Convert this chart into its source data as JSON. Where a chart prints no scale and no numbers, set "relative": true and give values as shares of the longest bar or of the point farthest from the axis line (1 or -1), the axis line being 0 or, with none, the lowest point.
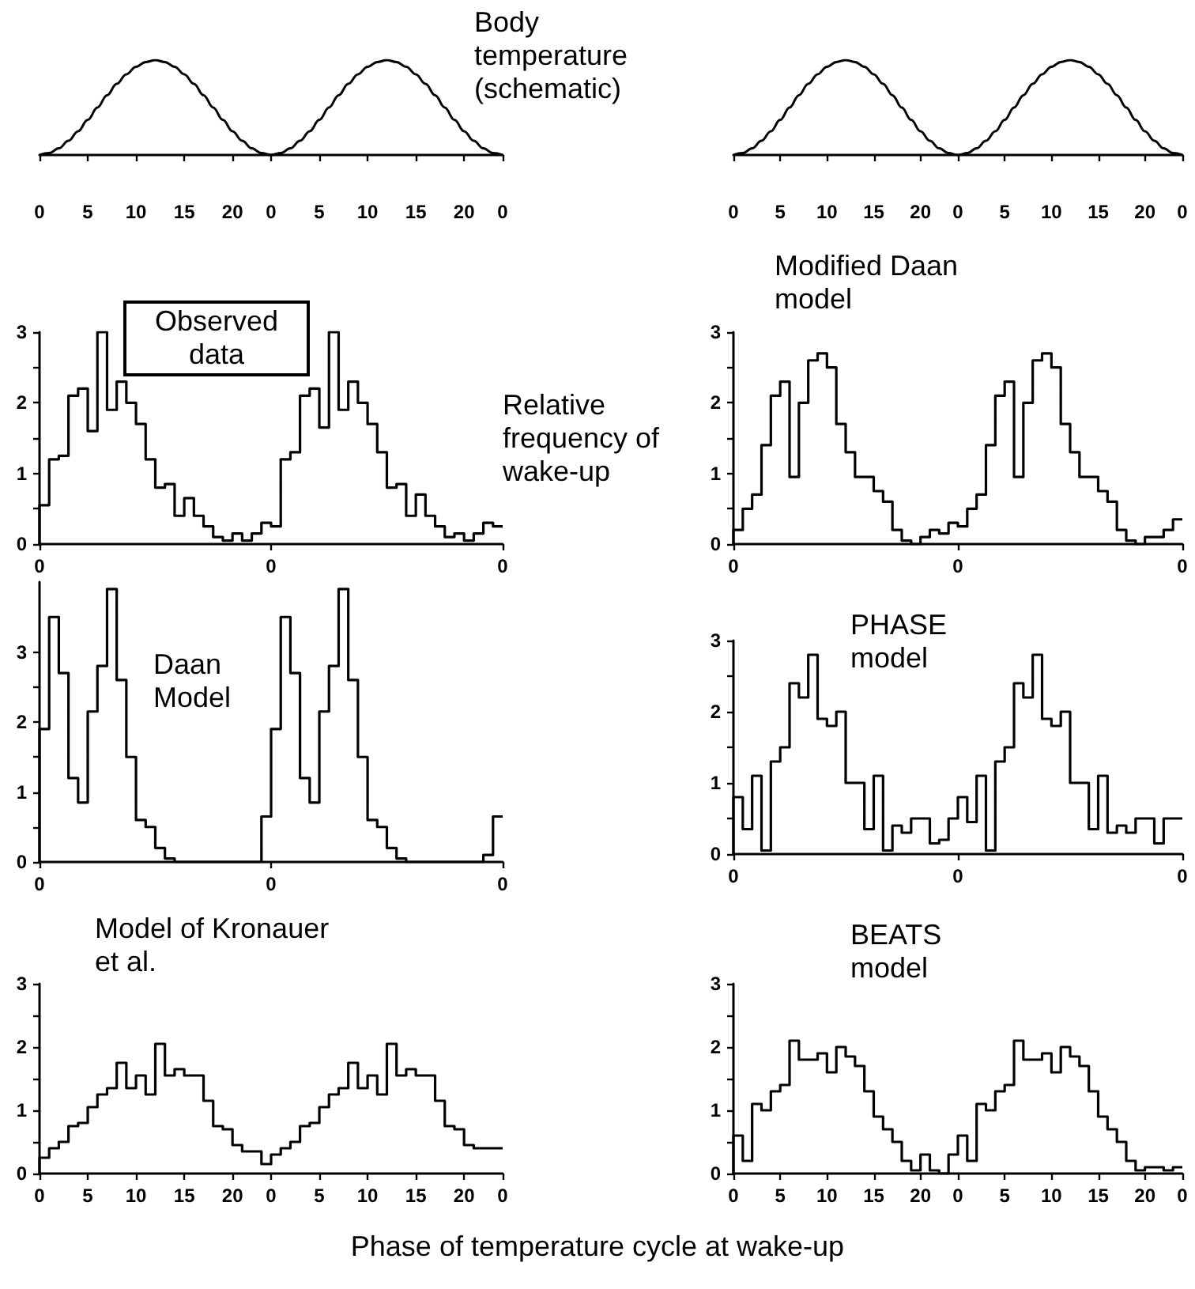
{
  "chart_data": [
    {
      "type": "line",
      "title": "Body temperature (schematic)",
      "relative": true,
      "color": "#000000",
      "categories": [
        "0",
        null,
        null,
        null,
        null,
        "5",
        null,
        null,
        null,
        null,
        "10",
        null,
        null,
        null,
        null,
        "15",
        null,
        null,
        null,
        null,
        "20",
        null,
        null,
        null,
        "0",
        null,
        null,
        null,
        null,
        "5",
        null,
        null,
        null,
        null,
        "10",
        null,
        null,
        null,
        null,
        "15",
        null,
        null,
        null,
        null,
        "20",
        null,
        null,
        null,
        "0"
      ],
      "values": [
        0,
        0.02,
        0.07,
        0.15,
        0.25,
        0.37,
        0.5,
        0.63,
        0.75,
        0.85,
        0.93,
        0.98,
        1,
        0.98,
        0.93,
        0.85,
        0.75,
        0.63,
        0.5,
        0.37,
        0.25,
        0.15,
        0.07,
        0.02,
        0,
        0.02,
        0.07,
        0.15,
        0.25,
        0.37,
        0.5,
        0.63,
        0.75,
        0.85,
        0.93,
        0.98,
        1,
        0.98,
        0.93,
        0.85,
        0.75,
        0.63,
        0.5,
        0.37,
        0.25,
        0.15,
        0.07,
        0.02,
        0
      ]
    },
    {
      "type": "line",
      "relative": true,
      "color": "#000000",
      "categories": [
        "0",
        null,
        null,
        null,
        null,
        "5",
        null,
        null,
        null,
        null,
        "10",
        null,
        null,
        null,
        null,
        "15",
        null,
        null,
        null,
        null,
        "20",
        null,
        null,
        null,
        "0",
        null,
        null,
        null,
        null,
        "5",
        null,
        null,
        null,
        null,
        "10",
        null,
        null,
        null,
        null,
        "15",
        null,
        null,
        null,
        null,
        "20",
        null,
        null,
        null,
        "0"
      ],
      "values": [
        0,
        0.02,
        0.07,
        0.15,
        0.25,
        0.37,
        0.5,
        0.63,
        0.75,
        0.85,
        0.93,
        0.98,
        1,
        0.98,
        0.93,
        0.85,
        0.75,
        0.63,
        0.5,
        0.37,
        0.25,
        0.15,
        0.07,
        0.02,
        0,
        0.02,
        0.07,
        0.15,
        0.25,
        0.37,
        0.5,
        0.63,
        0.75,
        0.85,
        0.93,
        0.98,
        1,
        0.98,
        0.93,
        0.85,
        0.75,
        0.63,
        0.5,
        0.37,
        0.25,
        0.15,
        0.07,
        0.02,
        0
      ]
    },
    {
      "type": "step",
      "title": "Observed data",
      "ylabel": "Relative frequency of wake-up",
      "color": "#000000",
      "categories": [
        "0",
        null,
        null,
        null,
        null,
        null,
        null,
        null,
        null,
        null,
        null,
        null,
        null,
        null,
        null,
        null,
        null,
        null,
        null,
        null,
        null,
        null,
        null,
        null,
        "0",
        null,
        null,
        null,
        null,
        null,
        null,
        null,
        null,
        null,
        null,
        null,
        null,
        null,
        null,
        null,
        null,
        null,
        null,
        null,
        null,
        null,
        null,
        null,
        "0"
      ],
      "values": [
        0,
        0.55,
        1.2,
        1.25,
        2.1,
        2.2,
        1.6,
        3.0,
        1.9,
        2.3,
        2.0,
        1.7,
        1.2,
        0.8,
        0.85,
        0.4,
        0.65,
        0.4,
        0.25,
        0.1,
        0.05,
        0.15,
        0.05,
        0.15,
        0.3,
        0.25,
        1.2,
        1.3,
        2.1,
        2.2,
        1.65,
        3.0,
        1.9,
        2.3,
        2.0,
        1.7,
        1.3,
        0.8,
        0.85,
        0.4,
        0.7,
        0.4,
        0.25,
        0.1,
        0.15,
        0.05,
        0.15,
        0.3,
        0.25
      ],
      "ylim": [
        0,
        3
      ],
      "yticks": [
        0,
        {
          "value": 0.5,
          "label": null
        },
        1,
        {
          "value": 1.5,
          "label": null
        },
        2,
        {
          "value": 2.5,
          "label": null
        },
        3
      ]
    },
    {
      "type": "step",
      "title": "Modified Daan model",
      "color": "#000000",
      "categories": [
        "0",
        null,
        null,
        null,
        null,
        null,
        null,
        null,
        null,
        null,
        null,
        null,
        null,
        null,
        null,
        null,
        null,
        null,
        null,
        null,
        null,
        null,
        null,
        null,
        "0",
        null,
        null,
        null,
        null,
        null,
        null,
        null,
        null,
        null,
        null,
        null,
        null,
        null,
        null,
        null,
        null,
        null,
        null,
        null,
        null,
        null,
        null,
        null,
        "0"
      ],
      "values": [
        0,
        0.2,
        0.5,
        0.7,
        1.4,
        2.1,
        2.3,
        0.95,
        2.0,
        2.6,
        2.7,
        2.5,
        1.7,
        1.3,
        0.95,
        0.95,
        0.75,
        0.6,
        0.2,
        0.05,
        0,
        0.1,
        0.2,
        0.15,
        0.3,
        0.25,
        0.5,
        0.7,
        1.4,
        2.1,
        2.3,
        0.95,
        2.0,
        2.6,
        2.7,
        2.5,
        1.7,
        1.3,
        0.95,
        0.95,
        0.75,
        0.6,
        0.2,
        0.05,
        0,
        0.1,
        0.1,
        0.2,
        0.35
      ],
      "ylim": [
        0,
        3
      ],
      "yticks": [
        0,
        {
          "value": 0.5,
          "label": null
        },
        1,
        {
          "value": 1.5,
          "label": null
        },
        2,
        {
          "value": 2.5,
          "label": null
        },
        3
      ]
    },
    {
      "type": "step",
      "title": "Daan Model",
      "color": "#000000",
      "categories": [
        "0",
        null,
        null,
        null,
        null,
        null,
        null,
        null,
        null,
        null,
        null,
        null,
        null,
        null,
        null,
        null,
        null,
        null,
        null,
        null,
        null,
        null,
        null,
        null,
        "0",
        null,
        null,
        null,
        null,
        null,
        null,
        null,
        null,
        null,
        null,
        null,
        null,
        null,
        null,
        null,
        null,
        null,
        null,
        null,
        null,
        null,
        null,
        null,
        "0"
      ],
      "values": [
        0,
        1.9,
        3.5,
        2.7,
        1.2,
        0.85,
        2.15,
        2.8,
        3.9,
        2.6,
        1.5,
        0.6,
        0.5,
        0.2,
        0.05,
        0,
        0,
        0,
        0,
        0,
        0,
        0,
        0,
        0,
        0.65,
        1.9,
        3.5,
        2.7,
        1.2,
        0.85,
        2.15,
        2.8,
        3.9,
        2.6,
        1.5,
        0.6,
        0.5,
        0.2,
        0.05,
        0,
        0,
        0,
        0,
        0,
        0,
        0,
        0,
        0.1,
        0.65
      ],
      "ylim": [
        0,
        4
      ],
      "yticks": [
        0,
        {
          "value": 0.5,
          "label": null
        },
        1,
        {
          "value": 1.5,
          "label": null
        },
        2,
        {
          "value": 2.5,
          "label": null
        },
        3
      ]
    },
    {
      "type": "step",
      "title": "PHASE model",
      "color": "#000000",
      "categories": [
        "0",
        null,
        null,
        null,
        null,
        null,
        null,
        null,
        null,
        null,
        null,
        null,
        null,
        null,
        null,
        null,
        null,
        null,
        null,
        null,
        null,
        null,
        null,
        null,
        "0",
        null,
        null,
        null,
        null,
        null,
        null,
        null,
        null,
        null,
        null,
        null,
        null,
        null,
        null,
        null,
        null,
        null,
        null,
        null,
        null,
        null,
        null,
        null,
        "0"
      ],
      "values": [
        0,
        0.8,
        0.35,
        1.1,
        0.05,
        1.3,
        1.5,
        2.4,
        2.2,
        2.8,
        1.9,
        1.8,
        2.0,
        1.0,
        1.0,
        0.35,
        1.1,
        0.05,
        0.4,
        0.3,
        0.5,
        0.5,
        0.15,
        0.2,
        0.5,
        0.8,
        0.45,
        1.1,
        0.05,
        1.3,
        1.5,
        2.4,
        2.2,
        2.8,
        1.9,
        1.8,
        2.0,
        1.0,
        1.0,
        0.35,
        1.1,
        0.3,
        0.4,
        0.3,
        0.5,
        0.5,
        0.15,
        0.5,
        0.5
      ],
      "ylim": [
        0,
        3
      ],
      "yticks": [
        0,
        {
          "value": 0.5,
          "label": null
        },
        1,
        {
          "value": 1.5,
          "label": null
        },
        2,
        {
          "value": 2.5,
          "label": null
        },
        3
      ]
    },
    {
      "type": "step",
      "title": "Model of Kronauer et al.",
      "xlabel": "Phase of temperature cycle at wake-up",
      "color": "#000000",
      "categories": [
        "0",
        null,
        null,
        null,
        null,
        "5",
        null,
        null,
        null,
        null,
        "10",
        null,
        null,
        null,
        null,
        "15",
        null,
        null,
        null,
        null,
        "20",
        null,
        null,
        null,
        "0",
        null,
        null,
        null,
        null,
        "5",
        null,
        null,
        null,
        null,
        "10",
        null,
        null,
        null,
        null,
        "15",
        null,
        null,
        null,
        null,
        "20",
        null,
        null,
        null,
        "0"
      ],
      "values": [
        0,
        0.25,
        0.4,
        0.5,
        0.75,
        0.8,
        1.05,
        1.25,
        1.35,
        1.75,
        1.35,
        1.55,
        1.25,
        2.05,
        1.55,
        1.65,
        1.55,
        1.55,
        1.15,
        0.75,
        0.7,
        0.45,
        0.35,
        0.35,
        0.15,
        0.3,
        0.4,
        0.5,
        0.75,
        0.8,
        1.05,
        1.25,
        1.35,
        1.75,
        1.35,
        1.55,
        1.25,
        2.05,
        1.55,
        1.65,
        1.55,
        1.55,
        1.15,
        0.75,
        0.7,
        0.45,
        0.4,
        0.4,
        0.4
      ],
      "ylim": [
        0,
        3
      ],
      "yticks": [
        0,
        {
          "value": 0.5,
          "label": null
        },
        1,
        {
          "value": 1.5,
          "label": null
        },
        2,
        {
          "value": 2.5,
          "label": null
        },
        3
      ]
    },
    {
      "type": "step",
      "title": "BEATS model",
      "color": "#000000",
      "categories": [
        "0",
        null,
        null,
        null,
        null,
        "5",
        null,
        null,
        null,
        null,
        "10",
        null,
        null,
        null,
        null,
        "15",
        null,
        null,
        null,
        null,
        "20",
        null,
        null,
        null,
        "0",
        null,
        null,
        null,
        null,
        "5",
        null,
        null,
        null,
        null,
        "10",
        null,
        null,
        null,
        null,
        "15",
        null,
        null,
        null,
        null,
        "20",
        null,
        null,
        null,
        "0"
      ],
      "values": [
        0,
        0.6,
        0.2,
        1.1,
        1.0,
        1.3,
        1.4,
        2.1,
        1.8,
        1.8,
        1.9,
        1.6,
        2.0,
        1.85,
        1.7,
        1.3,
        0.9,
        0.7,
        0.5,
        0.2,
        0.05,
        0.3,
        0.05,
        0,
        0.3,
        0.6,
        0.2,
        1.1,
        1.0,
        1.3,
        1.4,
        2.1,
        1.8,
        1.8,
        1.9,
        1.6,
        2.0,
        1.85,
        1.7,
        1.3,
        0.9,
        0.7,
        0.5,
        0.2,
        0.05,
        0.1,
        0.1,
        0.05,
        0.1
      ],
      "ylim": [
        0,
        3
      ],
      "yticks": [
        0,
        {
          "value": 0.5,
          "label": null
        },
        1,
        {
          "value": 1.5,
          "label": null
        },
        2,
        {
          "value": 2.5,
          "label": null
        },
        3
      ]
    }
  ]
}
